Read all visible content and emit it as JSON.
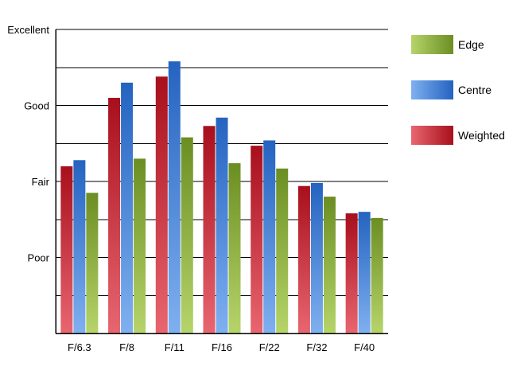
{
  "chart_data": {
    "type": "bar",
    "title": "",
    "xlabel": "",
    "ylabel": "",
    "categories": [
      "F/6.3",
      "F/8",
      "F/11",
      "F/16",
      "F/22",
      "F/32",
      "F/40"
    ],
    "y_tick_labels": [
      {
        "value": 1,
        "label": "Poor"
      },
      {
        "value": 2,
        "label": "Fair"
      },
      {
        "value": 3,
        "label": "Good"
      },
      {
        "value": 4,
        "label": "Excellent"
      }
    ],
    "ylim": [
      0,
      4
    ],
    "grid": true,
    "legend_position": "right",
    "series": [
      {
        "name": "Weighted",
        "color_top": "#a80f1c",
        "color_bottom": "#e86670",
        "values": [
          2.2,
          3.1,
          3.38,
          2.73,
          2.47,
          1.94,
          1.58
        ]
      },
      {
        "name": "Centre",
        "color_top": "#2463c0",
        "color_bottom": "#7fb0f0",
        "values": [
          2.28,
          3.3,
          3.58,
          2.84,
          2.54,
          1.98,
          1.6
        ]
      },
      {
        "name": "Edge",
        "color_top": "#6b8e23",
        "color_bottom": "#b6d46a",
        "values": [
          1.85,
          2.3,
          2.58,
          2.24,
          2.17,
          1.8,
          1.52
        ]
      }
    ],
    "legend_order": [
      "Edge",
      "Centre",
      "Weighted"
    ]
  }
}
